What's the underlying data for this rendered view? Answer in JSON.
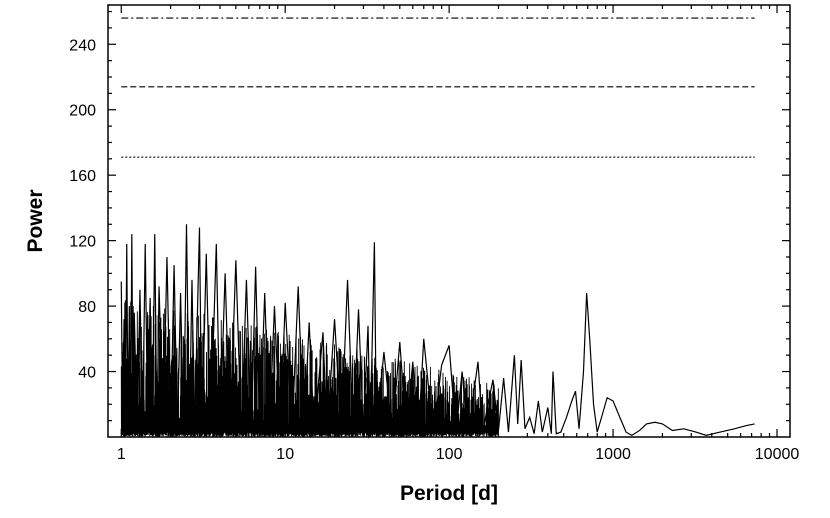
{
  "chart_data": {
    "type": "line",
    "title": "",
    "xlabel": "Period [d]",
    "ylabel": "Power",
    "xscale": "log",
    "xlim": [
      0.83,
      12000
    ],
    "ylim": [
      0,
      264
    ],
    "grid": false,
    "legend": "none",
    "x_ticks": [
      {
        "value": 1,
        "label": "1"
      },
      {
        "value": 10,
        "label": "10"
      },
      {
        "value": 100,
        "label": "100"
      },
      {
        "value": 1000,
        "label": "1000"
      },
      {
        "value": 10000,
        "label": "10000"
      }
    ],
    "y_ticks": [
      {
        "value": 40,
        "label": "40"
      },
      {
        "value": 80,
        "label": "80"
      },
      {
        "value": 120,
        "label": "120"
      },
      {
        "value": 160,
        "label": "160"
      },
      {
        "value": 200,
        "label": "200"
      },
      {
        "value": 240,
        "label": "240"
      }
    ],
    "reference_lines": [
      {
        "y": 171,
        "style": "dotted"
      },
      {
        "y": 214,
        "style": "dashed"
      },
      {
        "y": 256,
        "style": "dash-dot"
      }
    ],
    "series": [
      {
        "values": [
          [
            1.0,
            95
          ],
          [
            1.02,
            2
          ],
          [
            1.04,
            72
          ],
          [
            1.06,
            4
          ],
          [
            1.08,
            118
          ],
          [
            1.1,
            1
          ],
          [
            1.12,
            80
          ],
          [
            1.14,
            3
          ],
          [
            1.16,
            124
          ],
          [
            1.18,
            2
          ],
          [
            1.2,
            76
          ],
          [
            1.25,
            1
          ],
          [
            1.3,
            90
          ],
          [
            1.35,
            3
          ],
          [
            1.4,
            118
          ],
          [
            1.45,
            2
          ],
          [
            1.5,
            85
          ],
          [
            1.55,
            1
          ],
          [
            1.6,
            124
          ],
          [
            1.65,
            2
          ],
          [
            1.7,
            92
          ],
          [
            1.8,
            3
          ],
          [
            1.9,
            110
          ],
          [
            2.0,
            2
          ],
          [
            2.1,
            105
          ],
          [
            2.2,
            1
          ],
          [
            2.3,
            88
          ],
          [
            2.4,
            2
          ],
          [
            2.5,
            130
          ],
          [
            2.6,
            1
          ],
          [
            2.7,
            96
          ],
          [
            2.8,
            3
          ],
          [
            3.0,
            128
          ],
          [
            3.1,
            2
          ],
          [
            3.3,
            112
          ],
          [
            3.5,
            1
          ],
          [
            3.8,
            118
          ],
          [
            4.0,
            3
          ],
          [
            4.3,
            100
          ],
          [
            4.6,
            2
          ],
          [
            5.0,
            108
          ],
          [
            5.4,
            1
          ],
          [
            5.8,
            96
          ],
          [
            6.2,
            2
          ],
          [
            6.6,
            104
          ],
          [
            7.0,
            1
          ],
          [
            7.5,
            88
          ],
          [
            8.0,
            2
          ],
          [
            8.6,
            80
          ],
          [
            9.3,
            1
          ],
          [
            10.0,
            82
          ],
          [
            11,
            2
          ],
          [
            12,
            92
          ],
          [
            13,
            1
          ],
          [
            14,
            70
          ],
          [
            15,
            2
          ],
          [
            17,
            64
          ],
          [
            18,
            1
          ],
          [
            20,
            72
          ],
          [
            22,
            2
          ],
          [
            24,
            96
          ],
          [
            26,
            1
          ],
          [
            28,
            78
          ],
          [
            30,
            2
          ],
          [
            32,
            68
          ],
          [
            33,
            1
          ],
          [
            35,
            119
          ],
          [
            36,
            3
          ],
          [
            40,
            52
          ],
          [
            45,
            2
          ],
          [
            50,
            58
          ],
          [
            55,
            1
          ],
          [
            60,
            46
          ],
          [
            65,
            2
          ],
          [
            70,
            60
          ],
          [
            80,
            1
          ],
          [
            90,
            44
          ],
          [
            100,
            56
          ],
          [
            110,
            2
          ],
          [
            120,
            40
          ],
          [
            130,
            1
          ],
          [
            150,
            46
          ],
          [
            160,
            3
          ],
          [
            185,
            35
          ],
          [
            200,
            4
          ],
          [
            215,
            36
          ],
          [
            230,
            3
          ],
          [
            250,
            50
          ],
          [
            262,
            8
          ],
          [
            275,
            47
          ],
          [
            290,
            5
          ],
          [
            310,
            12
          ],
          [
            330,
            2
          ],
          [
            350,
            22
          ],
          [
            370,
            3
          ],
          [
            400,
            18
          ],
          [
            420,
            2
          ],
          [
            430,
            40
          ],
          [
            450,
            2
          ],
          [
            480,
            3
          ],
          [
            520,
            12
          ],
          [
            560,
            22
          ],
          [
            590,
            28
          ],
          [
            620,
            5
          ],
          [
            660,
            40
          ],
          [
            690,
            88
          ],
          [
            720,
            60
          ],
          [
            760,
            20
          ],
          [
            800,
            3
          ],
          [
            850,
            12
          ],
          [
            920,
            24
          ],
          [
            1000,
            22
          ],
          [
            1100,
            12
          ],
          [
            1200,
            3
          ],
          [
            1300,
            1
          ],
          [
            1450,
            4
          ],
          [
            1600,
            8
          ],
          [
            1800,
            9
          ],
          [
            2000,
            8
          ],
          [
            2300,
            4
          ],
          [
            2700,
            5
          ],
          [
            3200,
            3
          ],
          [
            3700,
            1
          ],
          [
            4500,
            3
          ],
          [
            5500,
            5
          ],
          [
            6500,
            7
          ],
          [
            7300,
            8
          ]
        ]
      }
    ]
  }
}
